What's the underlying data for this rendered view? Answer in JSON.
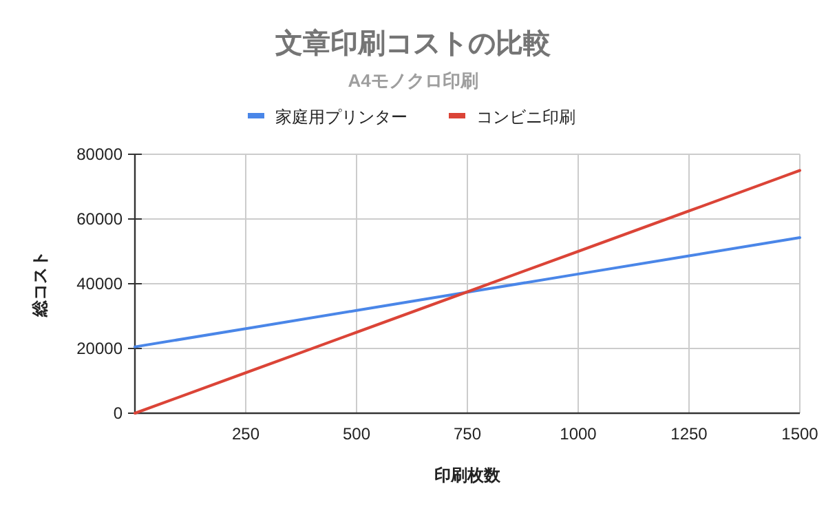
{
  "chart_data": {
    "type": "line",
    "title": "文章印刷コストの比較",
    "subtitle": "A4モノクロ印刷",
    "xlabel": "印刷枚数",
    "ylabel": "総コスト",
    "x": [
      0,
      250,
      500,
      750,
      1000,
      1250,
      1500
    ],
    "series": [
      {
        "name": "家庭用プリンター",
        "color": "#4a86e8",
        "values": [
          20500,
          26125,
          31750,
          37375,
          43000,
          48625,
          54250
        ]
      },
      {
        "name": "コンビニ印刷",
        "color": "#db4437",
        "values": [
          0,
          12500,
          25000,
          37500,
          50000,
          62500,
          75000
        ]
      }
    ],
    "xlim": [
      0,
      1500
    ],
    "xticks": [
      250,
      500,
      750,
      1000,
      1250,
      1500
    ],
    "ylim": [
      0,
      80000
    ],
    "yticks": [
      0,
      20000,
      40000,
      60000,
      80000
    ],
    "grid": true,
    "legend": "top",
    "marker": "none",
    "line_style": "solid"
  }
}
